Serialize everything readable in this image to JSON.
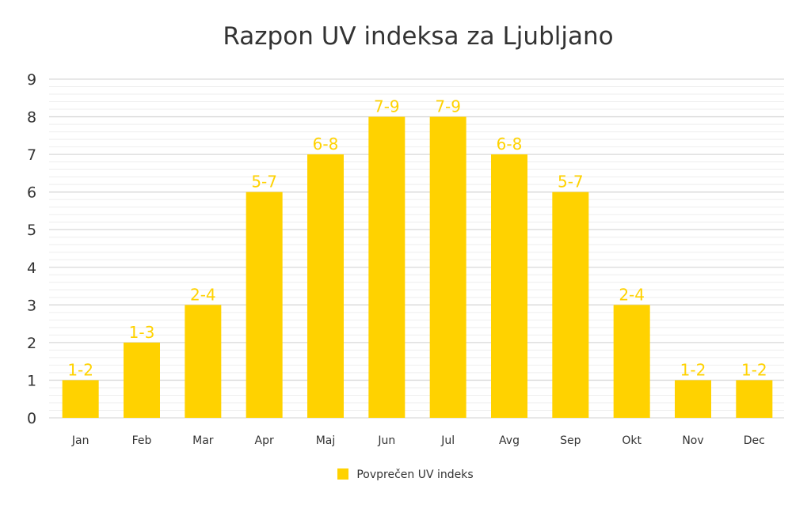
{
  "chart_data": {
    "type": "bar",
    "title": "Razpon UV indeksa za Ljubljano",
    "xlabel": "",
    "ylabel": "",
    "categories": [
      "Jan",
      "Feb",
      "Mar",
      "Apr",
      "Maj",
      "Jun",
      "Jul",
      "Avg",
      "Sep",
      "Okt",
      "Nov",
      "Dec"
    ],
    "series": [
      {
        "name": "Povprečen UV indeks",
        "values": [
          1,
          2,
          3,
          6,
          7,
          8,
          8,
          7,
          6,
          3,
          1,
          1
        ],
        "data_labels": [
          "1-2",
          "1-3",
          "2-4",
          "5-7",
          "6-8",
          "7-9",
          "7-9",
          "6-8",
          "5-7",
          "2-4",
          "1-2",
          "1-2"
        ]
      }
    ],
    "ylim": [
      0,
      9
    ],
    "yticks": [
      0,
      1,
      2,
      3,
      4,
      5,
      6,
      7,
      8,
      9
    ],
    "grid": true,
    "minor_grid": true,
    "legend_position": "bottom-center",
    "colors": {
      "bar": "#FFD200",
      "data_label": "#FFD200",
      "major_grid": "#d9d9d9",
      "minor_grid": "#eeeeee",
      "axis_text": "#333333"
    }
  }
}
